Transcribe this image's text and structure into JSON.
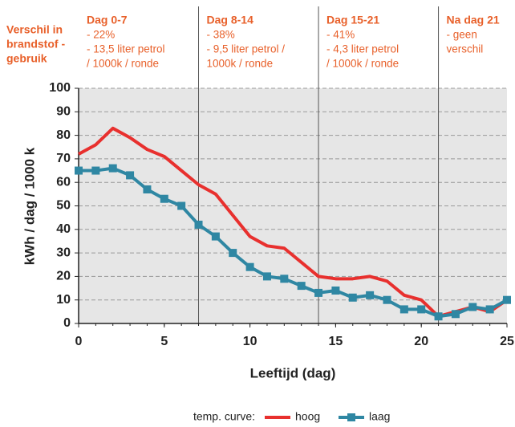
{
  "chart_data": {
    "type": "line",
    "y_label": "kWh / dag / 1000 k",
    "x_label": "Leeftijd (dag)",
    "legend_title": "temp. curve:",
    "side_label": [
      "Verschil in",
      "brandstof -",
      "gebruik"
    ],
    "annotations": [
      [
        "Dag 0-7",
        "- 22%",
        "- 13,5 liter  petrol",
        "/ 1000k / ronde"
      ],
      [
        "Dag 8-14",
        "- 38%",
        "- 9,5 liter  petrol /",
        "1000k / ronde"
      ],
      [
        "Dag 15-21",
        "- 41%",
        "- 4,3 liter  petrol",
        "/ 1000k / ronde"
      ],
      [
        "Na dag 21",
        "- geen",
        "verschil"
      ]
    ],
    "dividers": [
      7,
      14,
      21
    ],
    "x": [
      0,
      1,
      2,
      3,
      4,
      5,
      6,
      7,
      8,
      9,
      10,
      11,
      12,
      13,
      14,
      15,
      16,
      17,
      18,
      19,
      20,
      21,
      22,
      23,
      24,
      25
    ],
    "series": [
      {
        "name": "hoog",
        "color": "#e8302e",
        "marker": false,
        "values": [
          72,
          76,
          83,
          79,
          74,
          71,
          65,
          59,
          55,
          46,
          37,
          33,
          32,
          26,
          20,
          19,
          19,
          20,
          18,
          12,
          10,
          3,
          5,
          7,
          5,
          10
        ]
      },
      {
        "name": "laag",
        "color": "#2f87a3",
        "marker": true,
        "values": [
          65,
          65,
          66,
          63,
          57,
          53,
          50,
          42,
          37,
          30,
          24,
          20,
          19,
          16,
          13,
          14,
          11,
          12,
          10,
          6,
          6,
          3,
          4,
          7,
          6,
          10
        ]
      }
    ],
    "xlim": [
      0,
      25
    ],
    "ylim": [
      0,
      100
    ],
    "xticks": [
      0,
      5,
      10,
      15,
      20,
      25
    ],
    "yticks": [
      0,
      10,
      20,
      30,
      40,
      50,
      60,
      70,
      80,
      90,
      100
    ],
    "grid": true
  }
}
